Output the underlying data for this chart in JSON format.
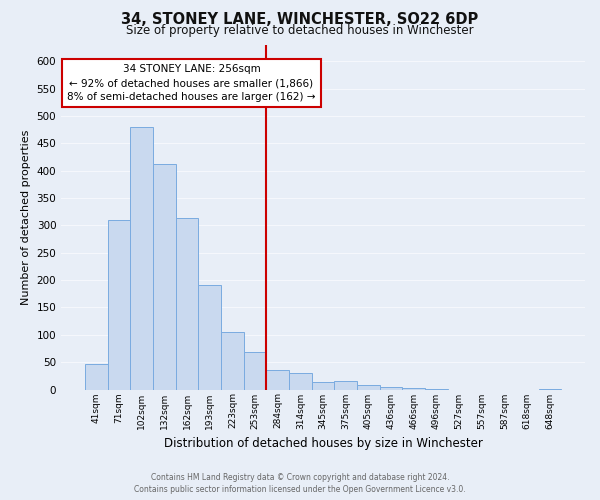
{
  "title": "34, STONEY LANE, WINCHESTER, SO22 6DP",
  "subtitle": "Size of property relative to detached houses in Winchester",
  "xlabel": "Distribution of detached houses by size in Winchester",
  "ylabel": "Number of detached properties",
  "bar_labels": [
    "41sqm",
    "71sqm",
    "102sqm",
    "132sqm",
    "162sqm",
    "193sqm",
    "223sqm",
    "253sqm",
    "284sqm",
    "314sqm",
    "345sqm",
    "375sqm",
    "405sqm",
    "436sqm",
    "466sqm",
    "496sqm",
    "527sqm",
    "557sqm",
    "587sqm",
    "618sqm",
    "648sqm"
  ],
  "bar_heights": [
    46,
    310,
    480,
    413,
    313,
    192,
    105,
    69,
    36,
    30,
    14,
    15,
    8,
    5,
    2,
    1,
    0,
    0,
    0,
    0,
    1
  ],
  "bar_color": "#c9d9ef",
  "bar_edge_color": "#7aabe0",
  "vline_x_index": 7,
  "vline_color": "#cc0000",
  "annotation_title": "34 STONEY LANE: 256sqm",
  "annotation_line1": "← 92% of detached houses are smaller (1,866)",
  "annotation_line2": "8% of semi-detached houses are larger (162) →",
  "annotation_box_color": "#ffffff",
  "annotation_box_edge": "#cc0000",
  "ylim": [
    0,
    630
  ],
  "yticks": [
    0,
    50,
    100,
    150,
    200,
    250,
    300,
    350,
    400,
    450,
    500,
    550,
    600
  ],
  "footer1": "Contains HM Land Registry data © Crown copyright and database right 2024.",
  "footer2": "Contains public sector information licensed under the Open Government Licence v3.0.",
  "bg_color": "#e8eef7",
  "plot_bg_color": "#e8eef7",
  "grid_color": "#f5f7fc"
}
